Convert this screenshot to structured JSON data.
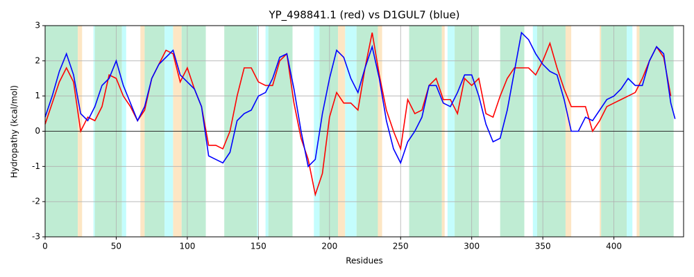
{
  "chart_data": {
    "type": "line",
    "title": "YP_498841.1 (red) vs D1GUL7 (blue)",
    "xlabel": "Residues",
    "ylabel": "Hydropathy (kcal/mol)",
    "x": [
      0,
      5,
      10,
      15,
      20,
      25,
      30,
      35,
      40,
      45,
      50,
      55,
      60,
      65,
      70,
      75,
      80,
      85,
      90,
      95,
      100,
      105,
      110,
      115,
      120,
      125,
      130,
      135,
      140,
      145,
      150,
      155,
      160,
      165,
      170,
      175,
      180,
      185,
      190,
      195,
      200,
      205,
      210,
      215,
      220,
      225,
      230,
      235,
      240,
      245,
      250,
      255,
      260,
      265,
      270,
      275,
      280,
      285,
      290,
      295,
      300,
      305,
      310,
      315,
      320,
      325,
      330,
      335,
      340,
      345,
      350,
      355,
      360,
      365,
      370,
      375,
      380,
      385,
      390,
      395,
      400,
      405,
      410,
      415,
      420,
      425,
      430,
      435,
      440,
      443
    ],
    "series": [
      {
        "name": "YP_498841.1",
        "color": "#ff0000",
        "values": [
          0.2,
          0.8,
          1.4,
          1.8,
          1.4,
          0.0,
          0.4,
          0.3,
          0.7,
          1.6,
          1.5,
          1.0,
          0.7,
          0.3,
          0.6,
          1.5,
          1.9,
          2.3,
          2.2,
          1.4,
          1.8,
          1.2,
          0.7,
          -0.4,
          -0.4,
          -0.5,
          0.0,
          1.0,
          1.8,
          1.8,
          1.4,
          1.3,
          1.3,
          2.0,
          2.2,
          0.8,
          -0.2,
          -0.8,
          -1.8,
          -1.2,
          0.4,
          1.1,
          0.8,
          0.8,
          0.6,
          1.8,
          2.8,
          1.6,
          0.6,
          0.0,
          -0.5,
          0.9,
          0.5,
          0.6,
          1.3,
          1.5,
          0.9,
          0.9,
          0.5,
          1.5,
          1.3,
          1.5,
          0.5,
          0.4,
          1.0,
          1.5,
          1.8,
          1.8,
          1.8,
          1.6,
          2.0,
          2.5,
          1.8,
          1.2,
          0.7,
          0.7,
          0.7,
          0.0,
          0.3,
          0.7,
          0.8,
          0.9,
          1.0,
          1.1,
          1.5,
          2.0,
          2.4,
          2.1,
          1.0,
          null
        ]
      },
      {
        "name": "D1GUL7",
        "color": "#0000ff",
        "values": [
          0.4,
          1.0,
          1.7,
          2.2,
          1.6,
          0.5,
          0.3,
          0.7,
          1.3,
          1.5,
          2.0,
          1.3,
          0.8,
          0.3,
          0.7,
          1.5,
          1.9,
          2.1,
          2.3,
          1.6,
          1.4,
          1.2,
          0.7,
          -0.7,
          -0.8,
          -0.9,
          -0.6,
          0.3,
          0.5,
          0.6,
          1.0,
          1.1,
          1.5,
          2.1,
          2.2,
          1.2,
          0.0,
          -1.0,
          -0.8,
          0.5,
          1.5,
          2.3,
          2.1,
          1.5,
          1.1,
          1.8,
          2.4,
          1.5,
          0.3,
          -0.5,
          -0.9,
          -0.3,
          0.0,
          0.4,
          1.3,
          1.3,
          0.8,
          0.7,
          1.1,
          1.6,
          1.6,
          1.0,
          0.2,
          -0.3,
          -0.2,
          0.6,
          1.7,
          2.8,
          2.6,
          2.2,
          1.9,
          1.7,
          1.6,
          0.9,
          0.0,
          0.0,
          0.4,
          0.3,
          0.6,
          0.9,
          1.0,
          1.2,
          1.5,
          1.3,
          1.3,
          2.0,
          2.4,
          2.2,
          0.8,
          0.35
        ]
      }
    ],
    "regions": [
      {
        "color": "#bfecd3",
        "start": 0,
        "end": 23
      },
      {
        "color": "#fde6c4",
        "start": 23,
        "end": 26
      },
      {
        "color": "#c4fdfd",
        "start": 34,
        "end": 35
      },
      {
        "color": "#bfecd3",
        "start": 35,
        "end": 54
      },
      {
        "color": "#c4fdfd",
        "start": 54,
        "end": 57
      },
      {
        "color": "#fde6c4",
        "start": 67,
        "end": 70
      },
      {
        "color": "#bfecd3",
        "start": 70,
        "end": 84
      },
      {
        "color": "#c4fdfd",
        "start": 84,
        "end": 90
      },
      {
        "color": "#fde6c4",
        "start": 90,
        "end": 96
      },
      {
        "color": "#bfecd3",
        "start": 96,
        "end": 113
      },
      {
        "color": "#bfecd3",
        "start": 126,
        "end": 149
      },
      {
        "color": "#c4fdfd",
        "start": 149,
        "end": 150
      },
      {
        "color": "#c4fdfd",
        "start": 155,
        "end": 157
      },
      {
        "color": "#bfecd3",
        "start": 157,
        "end": 174
      },
      {
        "color": "#c4fdfd",
        "start": 189,
        "end": 193
      },
      {
        "color": "#bfecd3",
        "start": 193,
        "end": 206
      },
      {
        "color": "#fde6c4",
        "start": 206,
        "end": 211
      },
      {
        "color": "#c4fdfd",
        "start": 211,
        "end": 219
      },
      {
        "color": "#bfecd3",
        "start": 219,
        "end": 234
      },
      {
        "color": "#fde6c4",
        "start": 234,
        "end": 237
      },
      {
        "color": "#bfecd3",
        "start": 256,
        "end": 279
      },
      {
        "color": "#fde6c4",
        "start": 279,
        "end": 281
      },
      {
        "color": "#c4fdfd",
        "start": 283,
        "end": 288
      },
      {
        "color": "#bfecd3",
        "start": 288,
        "end": 305
      },
      {
        "color": "#bfecd3",
        "start": 320,
        "end": 337
      },
      {
        "color": "#c4fdfd",
        "start": 343,
        "end": 346
      },
      {
        "color": "#bfecd3",
        "start": 346,
        "end": 366
      },
      {
        "color": "#fde6c4",
        "start": 366,
        "end": 370
      },
      {
        "color": "#fde6c4",
        "start": 390,
        "end": 391
      },
      {
        "color": "#bfecd3",
        "start": 391,
        "end": 409
      },
      {
        "color": "#c4fdfd",
        "start": 409,
        "end": 413
      },
      {
        "color": "#fde6c4",
        "start": 416,
        "end": 418
      },
      {
        "color": "#bfecd3",
        "start": 418,
        "end": 442
      }
    ],
    "xlim": [
      0,
      449
    ],
    "ylim": [
      -3,
      3
    ],
    "xticks": [
      0,
      50,
      100,
      150,
      200,
      250,
      300,
      350,
      400
    ],
    "yticks": [
      -3,
      -2,
      -1,
      0,
      1,
      2,
      3
    ],
    "grid": true,
    "zero_line": true
  }
}
